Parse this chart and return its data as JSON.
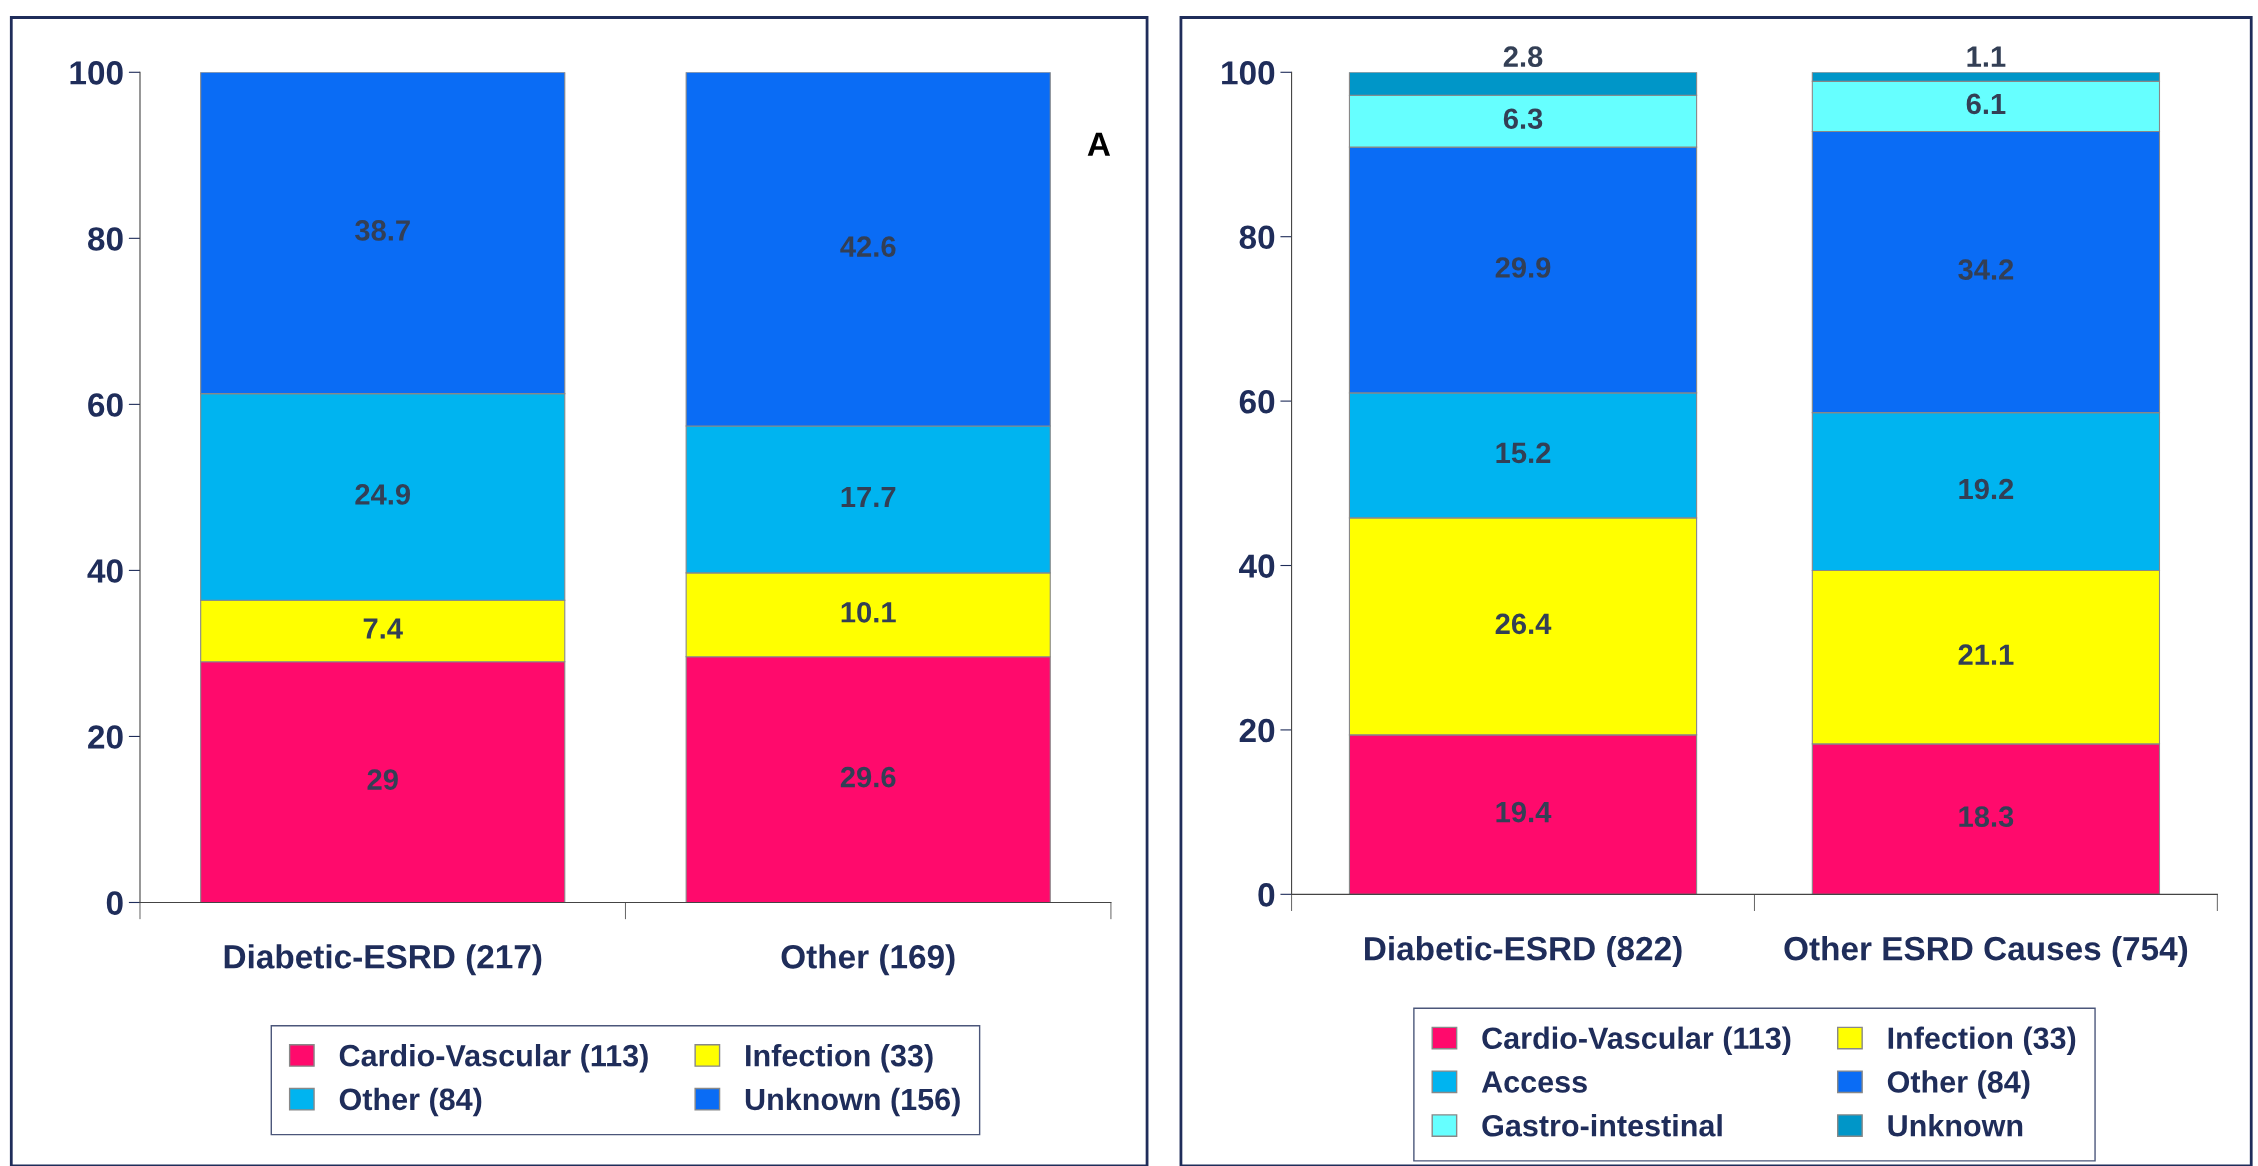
{
  "chart_data": [
    {
      "type": "bar",
      "stacked": true,
      "categories": [
        "Diabetic-ESRD (217)",
        "Other (169)"
      ],
      "ylim": [
        0,
        100
      ],
      "yticks": [
        0,
        20,
        40,
        60,
        80,
        100
      ],
      "grid": false,
      "legend": "bottom",
      "data_labels": true,
      "annotations": [
        "A"
      ],
      "series": [
        {
          "name": "Cardio-Vascular (113)",
          "color": "#ff0a6c",
          "values": [
            29,
            29.6
          ]
        },
        {
          "name": "Infection (33)",
          "color": "#ffff00",
          "values": [
            7.4,
            10.1
          ]
        },
        {
          "name": "Other (84)",
          "color": "#00b4f0",
          "values": [
            24.9,
            17.7
          ]
        },
        {
          "name": "Unknown (156)",
          "color": "#0a6cf5",
          "values": [
            38.7,
            42.6
          ]
        }
      ]
    },
    {
      "type": "bar",
      "stacked": true,
      "categories": [
        "Diabetic-ESRD (822)",
        "Other ESRD Causes (754)"
      ],
      "ylim": [
        0,
        100
      ],
      "yticks": [
        0,
        20,
        40,
        60,
        80,
        100
      ],
      "grid": false,
      "legend": "bottom",
      "data_labels": true,
      "series": [
        {
          "name": "Cardio-Vascular (113)",
          "color": "#ff0a6c",
          "values": [
            19.4,
            18.3
          ]
        },
        {
          "name": "Infection (33)",
          "color": "#ffff00",
          "values": [
            26.4,
            21.1
          ]
        },
        {
          "name": "Access",
          "color": "#00b4f0",
          "values": [
            15.2,
            19.2
          ]
        },
        {
          "name": "Other (84)",
          "color": "#0a6cf5",
          "values": [
            29.9,
            34.2
          ]
        },
        {
          "name": "Gastro-intestinal",
          "color": "#66ffff",
          "values": [
            6.3,
            6.1
          ]
        },
        {
          "name": "Unknown",
          "color": "#0096c8",
          "values": [
            2.8,
            1.1
          ]
        }
      ]
    }
  ]
}
